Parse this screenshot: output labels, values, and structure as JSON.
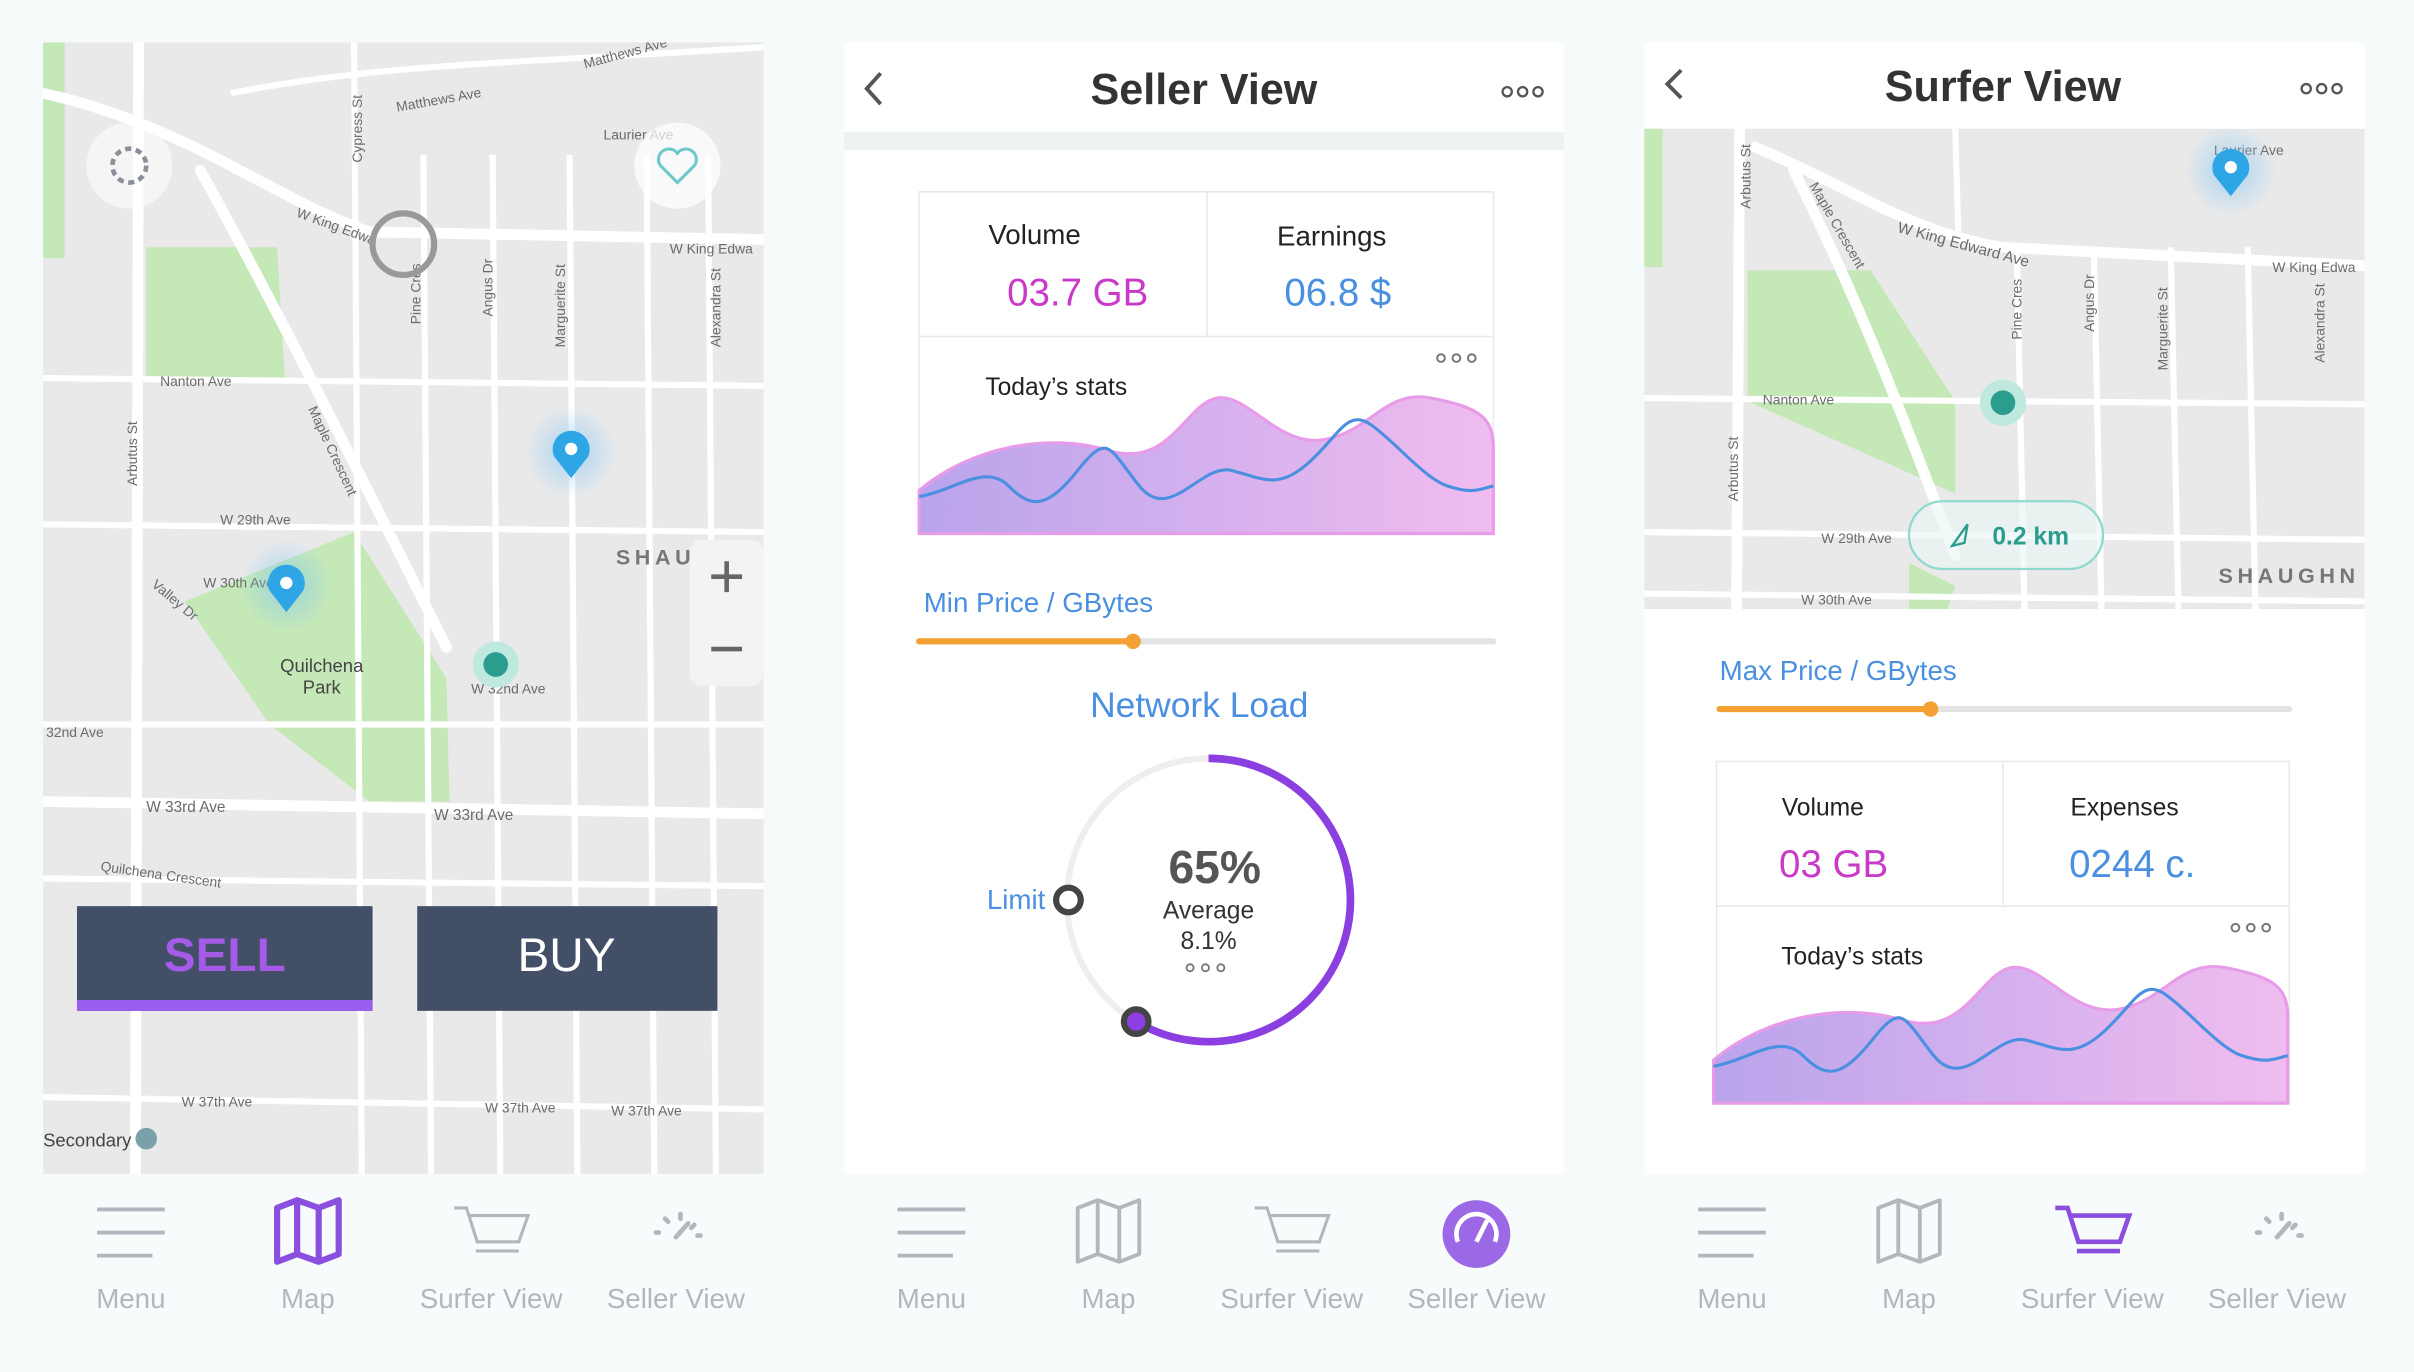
{
  "map_screen": {
    "map_labels": [
      "Matthews Ave",
      "Matthews Ave",
      "Laurier Ave",
      "W King Edwa",
      "W King Edwa",
      "Nanton Ave",
      "Arbutus St",
      "Maple Crescent",
      "W 29th Ave",
      "W 30th Ave",
      "Valley Dr",
      "W 32nd Ave",
      "32nd Ave",
      "W 33rd Ave",
      "W 33rd Ave",
      "Quilchena Crescent",
      "W 37th Ave",
      "W 37th Ave",
      "W 37th Ave",
      "Pine Cres",
      "Angus Dr",
      "Marguerite St",
      "Alexandra St",
      "Cypress St",
      "SHAU"
    ],
    "park": [
      "Quilchena",
      "Park"
    ],
    "poi": "Secondary",
    "sell": "SELL",
    "buy": "BUY",
    "nav": [
      "Menu",
      "Map",
      "Surfer View",
      "Seller View"
    ]
  },
  "seller_view": {
    "title": "Seller View",
    "volume_label": "Volume",
    "volume": "03.7 GB",
    "earnings_label": "Earnings",
    "earnings": "06.8 $",
    "stats_title": "Today’s stats",
    "slider_label": "Min Price / GBytes",
    "load_title": "Network Load",
    "limit_label": "Limit",
    "load_percent": "65%",
    "average_label": "Average",
    "average": "8.1%",
    "nav": [
      "Menu",
      "Map",
      "Surfer View",
      "Seller View"
    ]
  },
  "surfer_view": {
    "title": "Surfer View",
    "map_labels": [
      "W King Edward Ave",
      "W King Edwa",
      "Nanton Ave",
      "Arbutus St",
      "Arbutus St",
      "Maple Crescent",
      "W 29th Ave",
      "W 30th Ave",
      "Laurier Ave",
      "Pine Cres",
      "Angus Dr",
      "Marguerite St",
      "Alexandra St",
      "SHAUGHN"
    ],
    "distance": "0.2 km",
    "slider_label": "Max Price / GBytes",
    "volume_label": "Volume",
    "volume": "03 GB",
    "expenses_label": "Expenses",
    "expenses": "0244 c.",
    "stats_title": "Today’s stats",
    "nav": [
      "Menu",
      "Map",
      "Surfer View",
      "Seller View"
    ]
  }
}
